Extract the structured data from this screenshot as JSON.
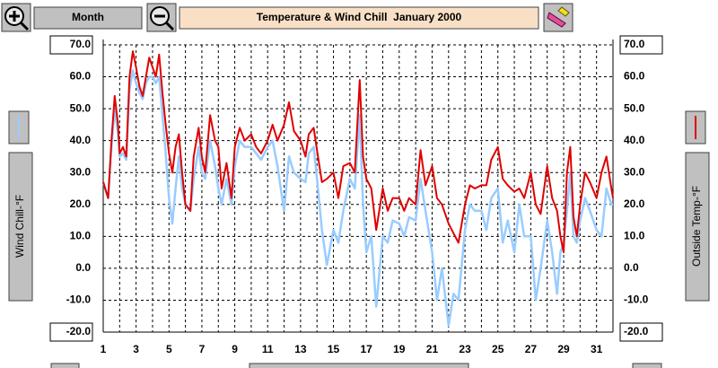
{
  "toolbar": {
    "period": "Month"
  },
  "chart_data": {
    "type": "line",
    "title": "Temperature & Wind Chill  January 2000",
    "x": [
      1,
      1.3,
      1.5,
      1.7,
      1.9,
      2,
      2.2,
      2.4,
      2.6,
      2.8,
      3,
      3.2,
      3.4,
      3.6,
      3.8,
      4,
      4.2,
      4.4,
      4.6,
      4.8,
      5,
      5.2,
      5.4,
      5.6,
      5.8,
      6,
      6.3,
      6.5,
      6.8,
      7,
      7.2,
      7.5,
      7.8,
      8,
      8.2,
      8.5,
      8.8,
      9,
      9.3,
      9.6,
      10,
      10.3,
      10.6,
      11,
      11.3,
      11.6,
      12,
      12.3,
      12.6,
      13,
      13.3,
      13.5,
      13.8,
      14,
      14.3,
      14.6,
      15,
      15.3,
      15.6,
      16,
      16.3,
      16.6,
      16.8,
      17,
      17.3,
      17.6,
      18,
      18.3,
      18.6,
      19,
      19.3,
      19.6,
      20,
      20.3,
      20.6,
      21,
      21.3,
      21.6,
      22,
      22.3,
      22.6,
      23,
      23.3,
      23.6,
      24,
      24.3,
      24.6,
      25,
      25.3,
      25.6,
      26,
      26.3,
      26.6,
      27,
      27.3,
      27.6,
      28,
      28.3,
      28.6,
      28.8,
      29,
      29.2,
      29.4,
      29.6,
      29.8,
      30,
      30.3,
      30.6,
      31,
      31.3,
      31.6,
      31.9,
      32
    ],
    "xlim": [
      1,
      32
    ],
    "xticks": [
      1,
      3,
      5,
      7,
      9,
      11,
      13,
      15,
      17,
      19,
      21,
      23,
      25,
      27,
      29,
      31
    ],
    "xminor": [
      2,
      4,
      6,
      8,
      10,
      12,
      14,
      16,
      18,
      20,
      22,
      24,
      26,
      28,
      30,
      32
    ],
    "ylim": [
      -20,
      70
    ],
    "yticks": [
      {
        "value": -20,
        "label": "-20.0"
      },
      {
        "value": -10,
        "label": "-10.0"
      },
      {
        "value": 0,
        "label": "0.0"
      },
      {
        "value": 10,
        "label": "10.0"
      },
      {
        "value": 20,
        "label": "20.0"
      },
      {
        "value": 30,
        "label": "30.0"
      },
      {
        "value": 40,
        "label": "40.0"
      },
      {
        "value": 50,
        "label": "50.0"
      },
      {
        "value": 60,
        "label": "60.0"
      },
      {
        "value": 70,
        "label": "70.0"
      }
    ],
    "y2lim": [
      -20,
      70
    ],
    "y2ticks": [
      {
        "value": -20,
        "label": "-20.0"
      },
      {
        "value": -10,
        "label": "-10.0"
      },
      {
        "value": 0,
        "label": "0.0"
      },
      {
        "value": 10,
        "label": "10.0"
      },
      {
        "value": 20,
        "label": "20.0"
      },
      {
        "value": 30,
        "label": "30.0"
      },
      {
        "value": 40,
        "label": "40.0"
      },
      {
        "value": 50,
        "label": "50.0"
      },
      {
        "value": 60,
        "label": "60.0"
      },
      {
        "value": 70,
        "label": "70.0"
      }
    ],
    "grid": true,
    "series": [
      {
        "name": "Wind Chill-°F",
        "color": "#99ccff",
        "values": [
          27,
          22,
          38,
          50,
          42,
          35,
          36,
          34,
          56,
          62,
          58,
          55,
          53,
          58,
          60,
          60,
          58,
          60,
          48,
          36,
          22,
          14,
          25,
          35,
          25,
          20,
          18,
          28,
          38,
          30,
          28,
          40,
          32,
          25,
          20,
          28,
          20,
          32,
          40,
          38,
          38,
          36,
          34,
          38,
          40,
          32,
          18,
          35,
          30,
          28,
          27,
          36,
          38,
          28,
          12,
          1,
          12,
          8,
          18,
          28,
          25,
          48,
          20,
          5,
          10,
          -12,
          10,
          8,
          15,
          14,
          10,
          16,
          15,
          28,
          18,
          5,
          -10,
          0,
          -18,
          -8,
          -10,
          12,
          20,
          18,
          18,
          12,
          22,
          25,
          8,
          15,
          5,
          20,
          10,
          10,
          -10,
          0,
          15,
          5,
          -8,
          5,
          8,
          18,
          30,
          10,
          8,
          15,
          22,
          18,
          12,
          10,
          25,
          20,
          20
        ]
      },
      {
        "name": "Outside Temp-°F",
        "color": "#e00000",
        "axis": "y2",
        "values": [
          27,
          22,
          40,
          54,
          45,
          36,
          38,
          35,
          60,
          68,
          63,
          57,
          54,
          60,
          66,
          63,
          60,
          67,
          55,
          45,
          36,
          30,
          38,
          42,
          30,
          20,
          18,
          35,
          44,
          35,
          30,
          48,
          40,
          38,
          25,
          33,
          22,
          38,
          44,
          40,
          42,
          38,
          36,
          40,
          45,
          40,
          45,
          52,
          43,
          40,
          35,
          42,
          44,
          37,
          27,
          28,
          30,
          22,
          32,
          33,
          30,
          59,
          35,
          28,
          25,
          12,
          25,
          18,
          22,
          22,
          18,
          22,
          20,
          37,
          26,
          32,
          22,
          20,
          14,
          11,
          8,
          20,
          26,
          25,
          26,
          26,
          34,
          38,
          28,
          26,
          24,
          25,
          22,
          30,
          20,
          17,
          32,
          22,
          18,
          10,
          5,
          30,
          38,
          16,
          10,
          20,
          30,
          27,
          22,
          30,
          35,
          25,
          22
        ]
      }
    ]
  }
}
